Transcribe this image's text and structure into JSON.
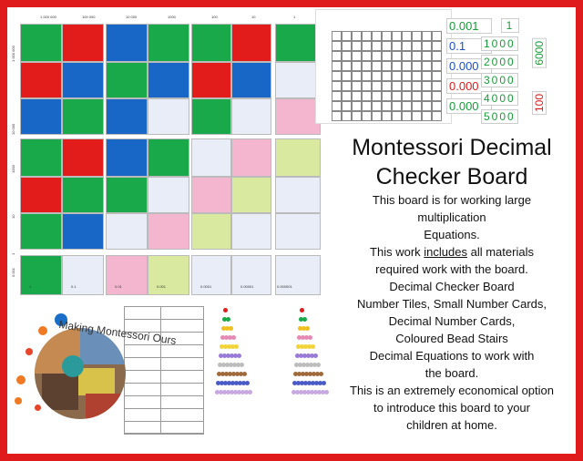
{
  "title": {
    "line1": "Montessori Decimal",
    "line2": "Checker Board"
  },
  "description": {
    "line1": "This board is for working large",
    "line2": "multiplication",
    "line3": "Equations.",
    "line4_pre": "This work ",
    "line4_u": "includes",
    "line4_post": " all materials",
    "line5": "required work with the board.",
    "line6": "Decimal Checker Board",
    "line7": "Number Tiles, Small Number Cards,",
    "line8": "Decimal Number Cards,",
    "line9": "Coloured Bead Stairs",
    "line10": "Decimal Equations to work with",
    "line11": "the board.",
    "line12": "This is an extremely economical option",
    "line13": "to introduce this board to your",
    "line14": "children at home."
  },
  "board": {
    "top_numbers": [
      "1 000 000",
      "100 000",
      "10 000",
      "1000",
      "100",
      "10",
      "1"
    ],
    "bottom_numbers": [
      "1",
      "0.1",
      "0.01",
      "0.001",
      "0.0001",
      "0.00001",
      "0.000001"
    ],
    "side_numbers": [
      "1 000 000",
      "10 000",
      "1000",
      "10",
      "1",
      "0.001"
    ]
  },
  "decimal_cards": [
    "0.001",
    "0.1",
    "0.000",
    "0.000",
    "0.000"
  ],
  "digit_cards": [
    "1",
    "1000",
    "2000",
    "3000",
    "4000",
    "5000"
  ],
  "vertical_cards": [
    "6000",
    "100"
  ],
  "logo": {
    "text": "Making Montessori Ours"
  },
  "colors": {
    "border": "#e01b1b",
    "green": "#19a84a",
    "red": "#e21b1b",
    "blue": "#1866c6",
    "pink": "#f4b6cf",
    "lime": "#d9eaa0",
    "pale": "#e8edf8"
  }
}
